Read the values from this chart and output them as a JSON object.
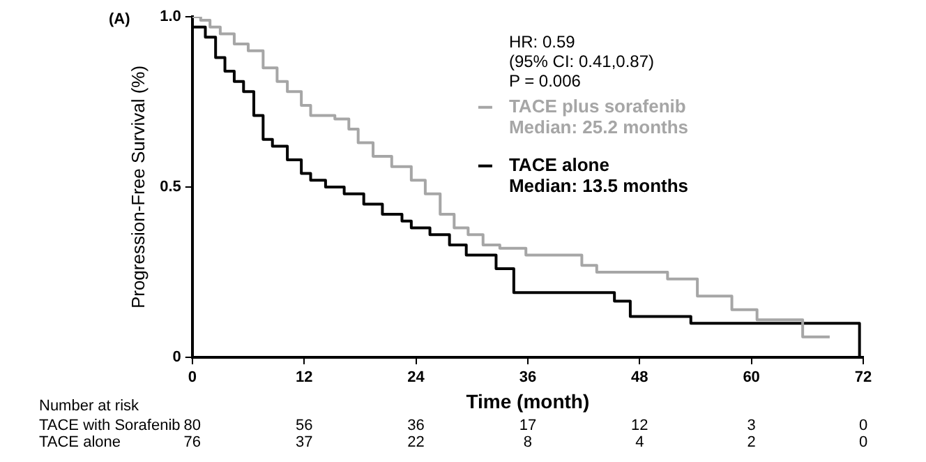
{
  "chart_data": {
    "type": "step",
    "xlabel": "Time (month)",
    "ylabel": "Progression-Free Survival (%)",
    "xlim": [
      0,
      72
    ],
    "xticks": [
      0,
      12,
      24,
      36,
      48,
      60,
      72
    ],
    "ylim": [
      0,
      1
    ],
    "yticks": [
      0,
      0.5,
      {
        "value": 1,
        "label": "1.0"
      }
    ],
    "grid": false,
    "legend": "top right",
    "marker": "none",
    "line_style": "solid",
    "series": [
      {
        "name": "TACE plus sorafenib",
        "color": "#a6a6a6",
        "x": [
          0,
          0.9,
          1.9,
          3,
          4.5,
          6,
          7.6,
          9.1,
          10.2,
          11.7,
          12.7,
          15.3,
          16.8,
          17.8,
          19.4,
          21.4,
          23.5,
          25,
          26.6,
          28.1,
          29.6,
          31.2,
          33,
          35.8,
          41.8,
          43.4,
          51,
          54.2,
          57.9,
          60.6,
          65.5,
          68.4
        ],
        "values": [
          1,
          0.99,
          0.97,
          0.95,
          0.92,
          0.9,
          0.85,
          0.81,
          0.78,
          0.74,
          0.71,
          0.7,
          0.67,
          0.63,
          0.59,
          0.56,
          0.52,
          0.48,
          0.42,
          0.38,
          0.36,
          0.33,
          0.32,
          0.3,
          0.27,
          0.25,
          0.23,
          0.18,
          0.14,
          0.11,
          0.06,
          0.06
        ]
      },
      {
        "name": "TACE alone",
        "color": "#000000",
        "x": [
          0,
          1.4,
          2.5,
          3.5,
          4.5,
          5.5,
          6.6,
          7.6,
          8.6,
          10.2,
          11.7,
          12.7,
          14.3,
          16.3,
          18.4,
          20.4,
          22.5,
          23.5,
          25.5,
          27.6,
          29.4,
          32.6,
          34.5,
          45.3,
          47,
          53.5,
          71.6
        ],
        "values": [
          0.97,
          0.94,
          0.88,
          0.84,
          0.81,
          0.78,
          0.71,
          0.64,
          0.62,
          0.58,
          0.54,
          0.52,
          0.5,
          0.48,
          0.45,
          0.42,
          0.4,
          0.38,
          0.36,
          0.33,
          0.3,
          0.26,
          0.19,
          0.165,
          0.12,
          0.1,
          0
        ]
      }
    ],
    "annotations": [
      "(A)",
      "HR: 0.59",
      "(95% CI: 0.41,0.87)",
      "P = 0.006",
      "Median: 25.2 months",
      "Median: 13.5 months",
      "Number at risk",
      "TACE with Sorafenib",
      "80",
      "56",
      "36",
      "17",
      "12",
      "3",
      "0",
      "TACE alone",
      "76",
      "37",
      "22",
      "8",
      "4",
      "2",
      "0"
    ]
  }
}
